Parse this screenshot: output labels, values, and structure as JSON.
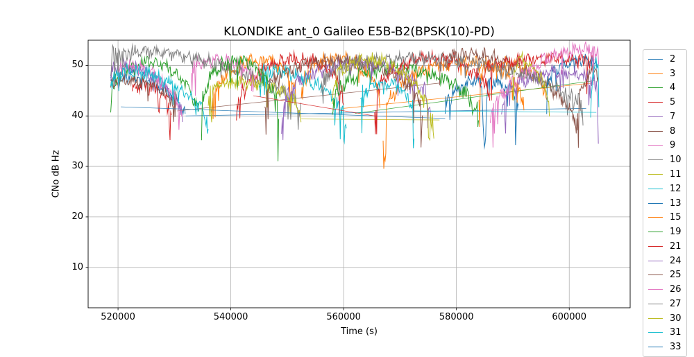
{
  "figure": {
    "background": "#ffffff",
    "plot_border_color": "#000000",
    "note": "matplotlib-style line figure"
  },
  "chart_data": {
    "type": "line",
    "title": "KLONDIKE ant_0 Galileo E5B-B2(BPSK(10)-PD)",
    "xlabel": "Time (s)",
    "ylabel": "CNo dB Hz",
    "xlim": [
      514700,
      610800
    ],
    "ylim": [
      2,
      55
    ],
    "xticks": [
      520000,
      540000,
      560000,
      580000,
      600000
    ],
    "yticks": [
      10,
      20,
      30,
      40,
      50
    ],
    "grid": true,
    "grid_color": "#b0b0b0",
    "legend_position": "right-outside",
    "series_note": "Each satellite pass is an arc [t_start, t_end, cn0_start, cn0_peak, cn0_end] in dB-Hz; links are thin straight gap-bridging segments [t0,v0,t1,v1]; dips are sharp fades [t, cn0_min].",
    "series": [
      {
        "name": "2",
        "color": "#1f77b4",
        "arcs": [
          [
            518700,
            532000,
            45.0,
            46.8,
            38.5
          ]
        ],
        "links": [
          [
            532000,
            40.0,
            603000,
            41.5
          ]
        ],
        "dips": []
      },
      {
        "name": "3",
        "color": "#ff7f0e",
        "arcs": [
          [
            536500,
            551500,
            40.0,
            51.0,
            42.0
          ],
          [
            552500,
            566500,
            42.0,
            51.3,
            40.0
          ],
          [
            584000,
            596000,
            45.0,
            50.3,
            42.0
          ]
        ],
        "links": [
          [
            560000,
            41.5,
            604000,
            46.5
          ]
        ],
        "dips": []
      },
      {
        "name": "4",
        "color": "#2ca02c",
        "arcs": [
          [
            518700,
            534400,
            40.5,
            50.5,
            36.5
          ]
        ],
        "links": [],
        "dips": []
      },
      {
        "name": "5",
        "color": "#d62728",
        "arcs": [
          [
            522500,
            529500,
            43.0,
            45.5,
            39.5
          ],
          [
            541000,
            560000,
            38.5,
            51.2,
            41.0
          ]
        ],
        "links": [],
        "dips": []
      },
      {
        "name": "7",
        "color": "#9467bd",
        "arcs": [
          [
            518700,
            531500,
            46.5,
            48.5,
            38.5
          ]
        ],
        "links": [],
        "dips": []
      },
      {
        "name": "8",
        "color": "#8c564b",
        "arcs": [
          [
            518700,
            530500,
            44.5,
            46.5,
            41.0
          ],
          [
            577000,
            601500,
            47.0,
            50.5,
            36.0
          ]
        ],
        "links": [
          [
            530500,
            41.0,
            577000,
            46.5
          ]
        ],
        "dips": []
      },
      {
        "name": "9",
        "color": "#e377c2",
        "arcs": [
          [
            520000,
            531500,
            46.0,
            48.5,
            38.0
          ],
          [
            533000,
            544500,
            47.5,
            50.8,
            46.0
          ]
        ],
        "links": [],
        "dips": []
      },
      {
        "name": "10",
        "color": "#7f7f7f",
        "arcs": [
          [
            518700,
            552500,
            49.6,
            50.9,
            40.0
          ]
        ],
        "links": [],
        "dips": []
      },
      {
        "name": "11",
        "color": "#bcbd22",
        "arcs": [
          [
            536000,
            552500,
            42.5,
            46.5,
            39.5
          ]
        ],
        "links": [
          [
            552500,
            39.4,
            577000,
            39.2
          ]
        ],
        "dips": []
      },
      {
        "name": "12",
        "color": "#17becf",
        "arcs": [
          [
            518700,
            536000,
            45.0,
            47.5,
            37.0
          ],
          [
            545000,
            560500,
            46.0,
            47.5,
            38.0
          ]
        ],
        "links": [],
        "dips": []
      },
      {
        "name": "13",
        "color": "#1f77b4",
        "arcs": [
          [
            578000,
            591000,
            39.0,
            47.0,
            40.0
          ],
          [
            596000,
            605000,
            46.0,
            50.5,
            49.5
          ]
        ],
        "links": [
          [
            520500,
            41.8,
            578000,
            39.5
          ]
        ],
        "dips": [
          [
            585000,
            33.5
          ]
        ]
      },
      {
        "name": "15",
        "color": "#ff7f0e",
        "arcs": [
          [
            567000,
            592000,
            37.0,
            50.6,
            40.0
          ]
        ],
        "links": [],
        "dips": []
      },
      {
        "name": "19",
        "color": "#2ca02c",
        "arcs": [
          [
            534800,
            548500,
            38.0,
            51.0,
            36.2
          ],
          [
            558000,
            584000,
            40.0,
            49.5,
            37.0
          ]
        ],
        "links": [
          [
            562000,
            40.5,
            604500,
            47.0
          ]
        ],
        "dips": []
      },
      {
        "name": "21",
        "color": "#d62728",
        "arcs": [
          [
            565500,
            586000,
            40.0,
            51.5,
            40.0
          ],
          [
            585000,
            604500,
            49.0,
            51.3,
            50.0
          ]
        ],
        "links": [
          [
            544000,
            44.0,
            565500,
            40.0
          ]
        ],
        "dips": []
      },
      {
        "name": "24",
        "color": "#9467bd",
        "arcs": [
          [
            549000,
            575500,
            38.0,
            50.6,
            38.0
          ],
          [
            588000,
            605200,
            41.0,
            48.5,
            43.5
          ]
        ],
        "links": [],
        "dips": []
      },
      {
        "name": "25",
        "color": "#8c564b",
        "arcs": [
          [
            546000,
            574000,
            41.0,
            51.0,
            39.0
          ],
          [
            601500,
            605200,
            40.0,
            48.0,
            47.0
          ]
        ],
        "links": [],
        "dips": []
      },
      {
        "name": "26",
        "color": "#e377c2",
        "arcs": [
          [
            586000,
            605300,
            38.0,
            51.0,
            49.5
          ]
        ],
        "links": [],
        "dips": []
      },
      {
        "name": "27",
        "color": "#7f7f7f",
        "arcs": [
          [
            556000,
            602500,
            44.0,
            51.0,
            38.5
          ]
        ],
        "links": [],
        "dips": []
      },
      {
        "name": "30",
        "color": "#bcbd22",
        "arcs": [
          [
            558000,
            576000,
            42.0,
            50.5,
            35.0
          ],
          [
            590000,
            596500,
            47.0,
            50.0,
            40.0
          ]
        ],
        "links": [],
        "dips": []
      },
      {
        "name": "31",
        "color": "#17becf",
        "arcs": [
          [
            563000,
            572500,
            41.0,
            46.5,
            39.0
          ],
          [
            603800,
            605300,
            41.0,
            49.5,
            48.0
          ]
        ],
        "links": [
          [
            572500,
            41.0,
            604800,
            40.7
          ]
        ],
        "dips": []
      },
      {
        "name": "33",
        "color": "#1f77b4",
        "arcs": [],
        "links": [],
        "dips": [],
        "partial": true
      }
    ]
  }
}
